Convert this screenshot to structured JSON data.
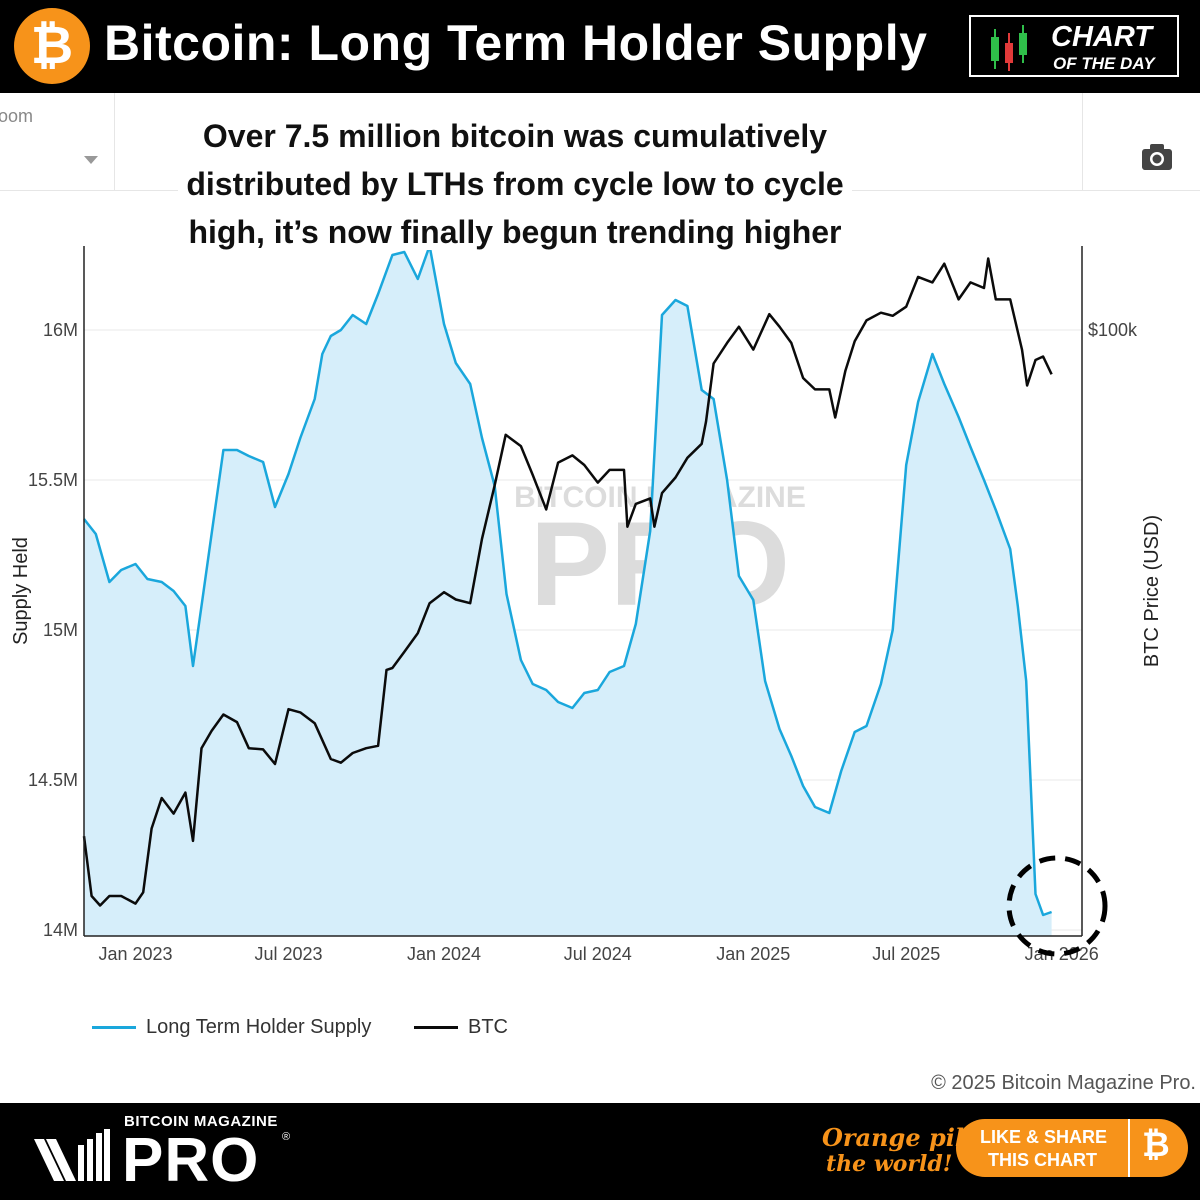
{
  "header": {
    "coin_symbol": "₿",
    "title": "Bitcoin: Long Term Holder Supply",
    "badge_line1": "CHART",
    "badge_line2": "OF THE DAY"
  },
  "toolbar": {
    "zoom_label": "oom",
    "zoom_value": "l",
    "camera_icon": "camera-icon"
  },
  "annotation": {
    "line1": "Over 7.5 million bitcoin was cumulatively",
    "line2": "distributed by LTHs from cycle low to cycle",
    "line3": "high, it’s now finally begun trending higher"
  },
  "colors": {
    "lth_line": "#1aa7dc",
    "lth_fill": "#d6eefa",
    "btc_line": "#0b0b0b",
    "brand_orange": "#f7931a"
  },
  "chart_data": {
    "type": "line",
    "title": "",
    "xlabel": "",
    "ylabel": "Supply Held",
    "y2label": "BTC Price (USD)",
    "x_ticks": [
      "Jan 2023",
      "Jul 2023",
      "Jan 2024",
      "Jul 2024",
      "Jan 2025",
      "Jul 2025",
      "Jan 2026"
    ],
    "y_ticks": [
      "14M",
      "14.5M",
      "15M",
      "15.5M",
      "16M"
    ],
    "y2_ticks": [
      "$100k"
    ],
    "ylim": [
      13980000,
      16280000
    ],
    "y2_scale": "log",
    "y2_lim": [
      15000,
      130000
    ],
    "grid": true,
    "legend_position": "bottom-left",
    "watermark": "BITCOIN MAGAZINE PRO",
    "series": [
      {
        "name": "Long Term Holder Supply",
        "axis": "left",
        "style": "line+fill",
        "x": [
          "2022-11-01",
          "2022-11-15",
          "2022-12-01",
          "2022-12-15",
          "2023-01-01",
          "2023-01-15",
          "2023-02-01",
          "2023-02-15",
          "2023-03-01",
          "2023-03-10",
          "2023-03-20",
          "2023-04-01",
          "2023-04-15",
          "2023-05-01",
          "2023-05-15",
          "2023-06-01",
          "2023-06-15",
          "2023-07-01",
          "2023-07-15",
          "2023-08-01",
          "2023-08-10",
          "2023-08-20",
          "2023-09-01",
          "2023-09-15",
          "2023-10-01",
          "2023-10-15",
          "2023-11-01",
          "2023-11-15",
          "2023-12-01",
          "2023-12-15",
          "2024-01-01",
          "2024-01-15",
          "2024-02-01",
          "2024-02-15",
          "2024-03-01",
          "2024-03-15",
          "2024-04-01",
          "2024-04-15",
          "2024-05-01",
          "2024-05-15",
          "2024-06-01",
          "2024-06-15",
          "2024-07-01",
          "2024-07-15",
          "2024-08-01",
          "2024-08-15",
          "2024-09-01",
          "2024-09-15",
          "2024-10-01",
          "2024-10-15",
          "2024-11-01",
          "2024-11-15",
          "2024-12-01",
          "2024-12-15",
          "2025-01-01",
          "2025-01-15",
          "2025-02-01",
          "2025-02-15",
          "2025-03-01",
          "2025-03-15",
          "2025-04-01",
          "2025-04-15",
          "2025-05-01",
          "2025-05-15",
          "2025-06-01",
          "2025-06-15",
          "2025-07-01",
          "2025-07-15",
          "2025-08-01",
          "2025-08-15",
          "2025-09-01",
          "2025-09-15",
          "2025-10-01",
          "2025-10-15",
          "2025-11-01",
          "2025-11-10",
          "2025-11-20",
          "2025-12-01",
          "2025-12-10",
          "2025-12-20"
        ],
        "values": [
          15370000,
          15320000,
          15160000,
          15200000,
          15220000,
          15170000,
          15160000,
          15130000,
          15080000,
          14880000,
          15080000,
          15320000,
          15600000,
          15600000,
          15580000,
          15560000,
          15410000,
          15520000,
          15640000,
          15770000,
          15920000,
          15980000,
          16000000,
          16050000,
          16020000,
          16120000,
          16250000,
          16260000,
          16170000,
          16280000,
          16020000,
          15890000,
          15820000,
          15640000,
          15480000,
          15120000,
          14900000,
          14820000,
          14800000,
          14760000,
          14740000,
          14790000,
          14800000,
          14860000,
          14880000,
          15020000,
          15330000,
          16050000,
          16100000,
          16080000,
          15800000,
          15770000,
          15500000,
          15180000,
          15100000,
          14830000,
          14670000,
          14580000,
          14480000,
          14410000,
          14390000,
          14530000,
          14660000,
          14680000,
          14820000,
          15000000,
          15550000,
          15760000,
          15920000,
          15820000,
          15710000,
          15610000,
          15500000,
          15400000,
          15270000,
          15080000,
          14830000,
          14120000,
          14050000,
          14060000
        ]
      },
      {
        "name": "BTC",
        "axis": "right",
        "style": "line",
        "x": [
          "2022-11-01",
          "2022-11-10",
          "2022-11-20",
          "2022-12-01",
          "2022-12-15",
          "2023-01-01",
          "2023-01-10",
          "2023-01-20",
          "2023-02-01",
          "2023-02-15",
          "2023-03-01",
          "2023-03-10",
          "2023-03-20",
          "2023-04-01",
          "2023-04-15",
          "2023-05-01",
          "2023-05-15",
          "2023-06-01",
          "2023-06-15",
          "2023-07-01",
          "2023-07-15",
          "2023-08-01",
          "2023-08-20",
          "2023-09-01",
          "2023-09-15",
          "2023-10-01",
          "2023-10-15",
          "2023-10-25",
          "2023-11-01",
          "2023-11-15",
          "2023-12-01",
          "2023-12-15",
          "2024-01-01",
          "2024-01-15",
          "2024-02-01",
          "2024-02-15",
          "2024-03-01",
          "2024-03-14",
          "2024-04-01",
          "2024-04-15",
          "2024-05-01",
          "2024-05-15",
          "2024-06-01",
          "2024-06-15",
          "2024-07-01",
          "2024-07-15",
          "2024-08-01",
          "2024-08-05",
          "2024-08-15",
          "2024-09-01",
          "2024-09-06",
          "2024-09-15",
          "2024-10-01",
          "2024-10-15",
          "2024-11-01",
          "2024-11-06",
          "2024-11-15",
          "2024-12-01",
          "2024-12-15",
          "2025-01-01",
          "2025-01-20",
          "2025-02-01",
          "2025-02-15",
          "2025-03-01",
          "2025-03-15",
          "2025-04-01",
          "2025-04-08",
          "2025-04-20",
          "2025-05-01",
          "2025-05-15",
          "2025-06-01",
          "2025-06-15",
          "2025-07-01",
          "2025-07-15",
          "2025-08-01",
          "2025-08-15",
          "2025-09-01",
          "2025-09-15",
          "2025-10-01",
          "2025-10-06",
          "2025-10-15",
          "2025-11-01",
          "2025-11-15",
          "2025-11-21",
          "2025-12-01",
          "2025-12-10",
          "2025-12-20"
        ],
        "values": [
          20500,
          17000,
          16500,
          17000,
          17000,
          16600,
          17200,
          21000,
          23100,
          22000,
          23500,
          20200,
          27000,
          28500,
          30000,
          29300,
          27000,
          26900,
          25700,
          30500,
          30200,
          29200,
          26100,
          25800,
          26600,
          27000,
          27200,
          34500,
          34700,
          36500,
          38700,
          42500,
          44000,
          43000,
          42500,
          52000,
          61500,
          72000,
          69500,
          63500,
          57000,
          66000,
          67500,
          65500,
          62000,
          64500,
          64500,
          54000,
          58000,
          59000,
          54000,
          60000,
          63000,
          67000,
          70000,
          75000,
          90000,
          96000,
          101000,
          94000,
          105000,
          101000,
          96000,
          86000,
          83000,
          83000,
          76000,
          88000,
          96500,
          103000,
          105500,
          104500,
          107500,
          118000,
          116000,
          123000,
          110000,
          116000,
          114000,
          125000,
          110000,
          110000,
          94000,
          84000,
          91000,
          92000,
          87000
        ]
      }
    ]
  },
  "legend": {
    "items": [
      {
        "label": "Long Term Holder Supply"
      },
      {
        "label": "BTC"
      }
    ]
  },
  "copyright": "© 2025 Bitcoin Magazine Pro.",
  "footer": {
    "brand_small": "BITCOIN MAGAZINE",
    "brand_large": "PRO",
    "reg_mark": "®",
    "slogan_line1": "Orange pill",
    "slogan_line2": "the world!",
    "share_line1": "LIKE & SHARE",
    "share_line2": "THIS CHART",
    "share_coin": "₿"
  }
}
